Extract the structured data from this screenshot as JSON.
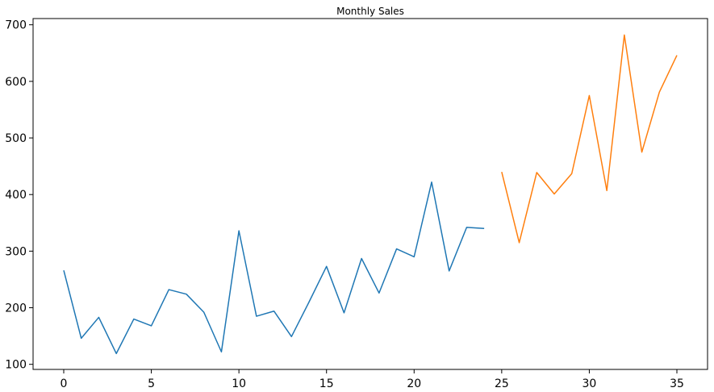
{
  "chart_data": {
    "type": "line",
    "title": "Monthly Sales",
    "xlabel": "",
    "ylabel": "",
    "xlim": [
      -1.75,
      36.75
    ],
    "ylim": [
      91,
      711
    ],
    "xticks": [
      0,
      5,
      10,
      15,
      20,
      25,
      30,
      35
    ],
    "yticks": [
      100,
      200,
      300,
      400,
      500,
      600,
      700
    ],
    "grid": false,
    "legend": "none",
    "series": [
      {
        "color": "#1f77b4",
        "x": [
          0,
          1,
          2,
          3,
          4,
          5,
          6,
          7,
          8,
          9,
          10,
          11,
          12,
          13,
          14,
          15,
          16,
          17,
          18,
          19,
          20,
          21,
          22,
          23,
          24
        ],
        "y": [
          266,
          146,
          183,
          119,
          180,
          168,
          232,
          224,
          192,
          122,
          336,
          185,
          194,
          149,
          210,
          273,
          191,
          287,
          226,
          304,
          290,
          422,
          265,
          342,
          340
        ]
      },
      {
        "color": "#ff7f0e",
        "x": [
          25,
          26,
          27,
          28,
          29,
          30,
          31,
          32,
          33,
          34,
          35
        ],
        "y": [
          440,
          315,
          439,
          401,
          437,
          575,
          407,
          682,
          475,
          581,
          646
        ]
      }
    ]
  }
}
